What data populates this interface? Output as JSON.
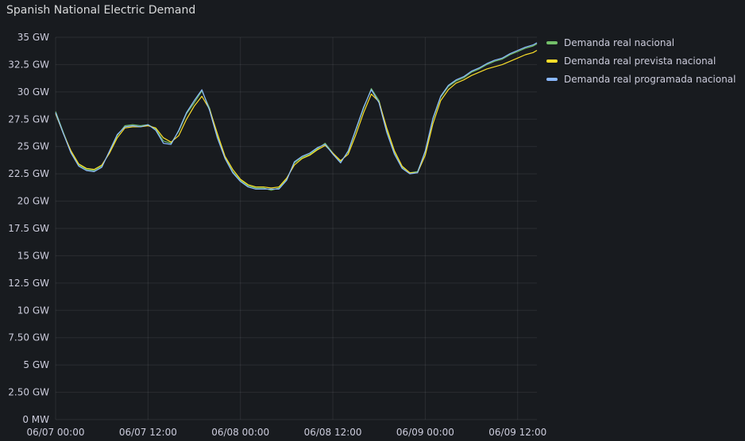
{
  "panel": {
    "title": "Spanish National Electric Demand"
  },
  "chart_data": {
    "type": "line",
    "title": "Spanish National Electric Demand",
    "xlabel": "",
    "ylabel": "",
    "x_start": "06/07 00:00",
    "x_end": "06/09 14:30",
    "x_ticks": [
      "06/07 00:00",
      "06/07 12:00",
      "06/08 00:00",
      "06/08 12:00",
      "06/09 00:00",
      "06/09 12:00"
    ],
    "y_ticks": [
      "0 MW",
      "2.50 GW",
      "5 GW",
      "7.50 GW",
      "10 GW",
      "12.5 GW",
      "15 GW",
      "17.5 GW",
      "20 GW",
      "22.5 GW",
      "25 GW",
      "27.5 GW",
      "30 GW",
      "32.5 GW",
      "35 GW"
    ],
    "y_unit": "GW",
    "ylim": [
      0,
      35
    ],
    "grid": true,
    "legend_position": "right",
    "x": [
      "06/07 00:00",
      "06/07 01:00",
      "06/07 02:00",
      "06/07 03:00",
      "06/07 04:00",
      "06/07 05:00",
      "06/07 06:00",
      "06/07 07:00",
      "06/07 08:00",
      "06/07 09:00",
      "06/07 10:00",
      "06/07 11:00",
      "06/07 12:00",
      "06/07 13:00",
      "06/07 14:00",
      "06/07 15:00",
      "06/07 16:00",
      "06/07 17:00",
      "06/07 18:00",
      "06/07 19:00",
      "06/07 20:00",
      "06/07 21:00",
      "06/07 22:00",
      "06/07 23:00",
      "06/08 00:00",
      "06/08 01:00",
      "06/08 02:00",
      "06/08 03:00",
      "06/08 04:00",
      "06/08 05:00",
      "06/08 06:00",
      "06/08 07:00",
      "06/08 08:00",
      "06/08 09:00",
      "06/08 10:00",
      "06/08 11:00",
      "06/08 12:00",
      "06/08 13:00",
      "06/08 14:00",
      "06/08 15:00",
      "06/08 16:00",
      "06/08 17:00",
      "06/08 18:00",
      "06/08 19:00",
      "06/08 20:00",
      "06/08 21:00",
      "06/08 22:00",
      "06/08 23:00",
      "06/09 00:00",
      "06/09 01:00",
      "06/09 02:00",
      "06/09 03:00",
      "06/09 04:00",
      "06/09 05:00",
      "06/09 06:00",
      "06/09 07:00",
      "06/09 08:00",
      "06/09 09:00",
      "06/09 10:00",
      "06/09 11:00",
      "06/09 12:00",
      "06/09 13:00",
      "06/09 14:00",
      "06/09 14:30"
    ],
    "series": [
      {
        "name": "Demanda real nacional",
        "color": "#73bf69",
        "values": [
          28.2,
          26.3,
          24.5,
          23.3,
          22.9,
          22.8,
          23.2,
          24.5,
          26.0,
          26.9,
          27.0,
          26.9,
          27.0,
          26.6,
          25.5,
          25.3,
          26.4,
          28.0,
          29.0,
          30.1,
          28.5,
          26.0,
          24.0,
          22.7,
          21.9,
          21.4,
          21.2,
          21.2,
          21.0,
          21.2,
          22.0,
          23.5,
          24.0,
          24.3,
          24.8,
          25.3,
          24.4,
          23.6,
          24.5,
          26.5,
          28.5,
          30.3,
          29.2,
          26.5,
          24.5,
          23.1,
          22.6,
          22.7,
          24.5,
          27.5,
          29.5,
          30.5,
          31.0,
          31.3,
          31.8,
          32.1,
          32.5,
          32.8,
          33.0,
          33.4,
          33.7,
          34.0,
          34.2,
          34.4
        ]
      },
      {
        "name": "Demanda real prevista nacional",
        "color": "#fade2a",
        "values": [
          28.0,
          26.2,
          24.6,
          23.4,
          23.0,
          22.9,
          23.3,
          24.4,
          25.8,
          26.7,
          26.8,
          26.8,
          26.9,
          26.7,
          25.8,
          25.4,
          26.0,
          27.5,
          28.7,
          29.6,
          28.4,
          26.2,
          24.1,
          22.9,
          22.0,
          21.5,
          21.3,
          21.3,
          21.2,
          21.3,
          22.1,
          23.3,
          23.9,
          24.2,
          24.7,
          25.1,
          24.4,
          23.7,
          24.3,
          26.1,
          28.1,
          29.8,
          29.1,
          26.7,
          24.6,
          23.2,
          22.6,
          22.6,
          24.2,
          27.1,
          29.2,
          30.2,
          30.8,
          31.1,
          31.5,
          31.8,
          32.1,
          32.3,
          32.5,
          32.8,
          33.1,
          33.4,
          33.6,
          33.8
        ]
      },
      {
        "name": "Demanda real programada nacional",
        "color": "#8ab8ff",
        "values": [
          28.1,
          26.2,
          24.4,
          23.2,
          22.8,
          22.7,
          23.1,
          24.6,
          26.1,
          26.8,
          26.9,
          26.8,
          27.0,
          26.5,
          25.3,
          25.2,
          26.5,
          28.1,
          29.2,
          30.2,
          28.3,
          25.8,
          23.9,
          22.6,
          21.8,
          21.3,
          21.1,
          21.1,
          21.1,
          21.1,
          21.9,
          23.6,
          24.1,
          24.4,
          24.9,
          25.2,
          24.3,
          23.5,
          24.6,
          26.6,
          28.6,
          30.2,
          29.0,
          26.3,
          24.3,
          23.0,
          22.5,
          22.6,
          24.6,
          27.6,
          29.6,
          30.6,
          31.1,
          31.4,
          31.9,
          32.2,
          32.6,
          32.9,
          33.1,
          33.5,
          33.8,
          34.1,
          34.3,
          34.5
        ]
      }
    ]
  }
}
